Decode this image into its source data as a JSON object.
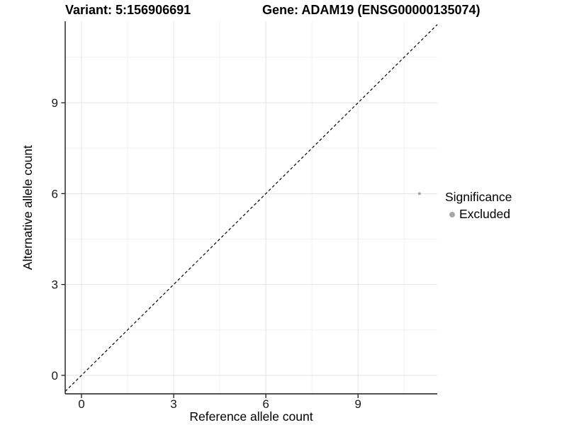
{
  "titles": {
    "variant": "Variant: 5:156906691",
    "gene": "Gene: ADAM19 (ENSG00000135074)"
  },
  "chart_data": {
    "type": "scatter",
    "xlabel": "Reference allele count",
    "ylabel": "Alternative allele count",
    "x_ticks": [
      0,
      3,
      6,
      9
    ],
    "y_ticks": [
      0,
      3,
      6,
      9
    ],
    "x_minor_gridlines": [
      1.5,
      4.5,
      7.5,
      10.5
    ],
    "y_minor_gridlines": [
      1.5,
      4.5,
      7.5,
      10.5
    ],
    "xlim": [
      -0.53,
      11.58
    ],
    "ylim": [
      -0.61,
      11.69
    ],
    "grid": true,
    "points": [
      {
        "x": 11,
        "y": 6,
        "significance": "Excluded",
        "color": "#a8a8a8",
        "radius": 2.1
      }
    ],
    "identity_line": {
      "style": "dashed",
      "color": "#000000"
    },
    "legend": {
      "title": "Significance",
      "position": "right",
      "items": [
        {
          "label": "Excluded",
          "color": "#a8a8a8"
        }
      ]
    }
  },
  "colors": {
    "background": "#ffffff",
    "axis_line": "#1a1a1a",
    "tick_label": "#1a1a1a",
    "grid_major": "#e3e3e3",
    "grid_minor": "#f1f1f1",
    "text": "#000000"
  }
}
